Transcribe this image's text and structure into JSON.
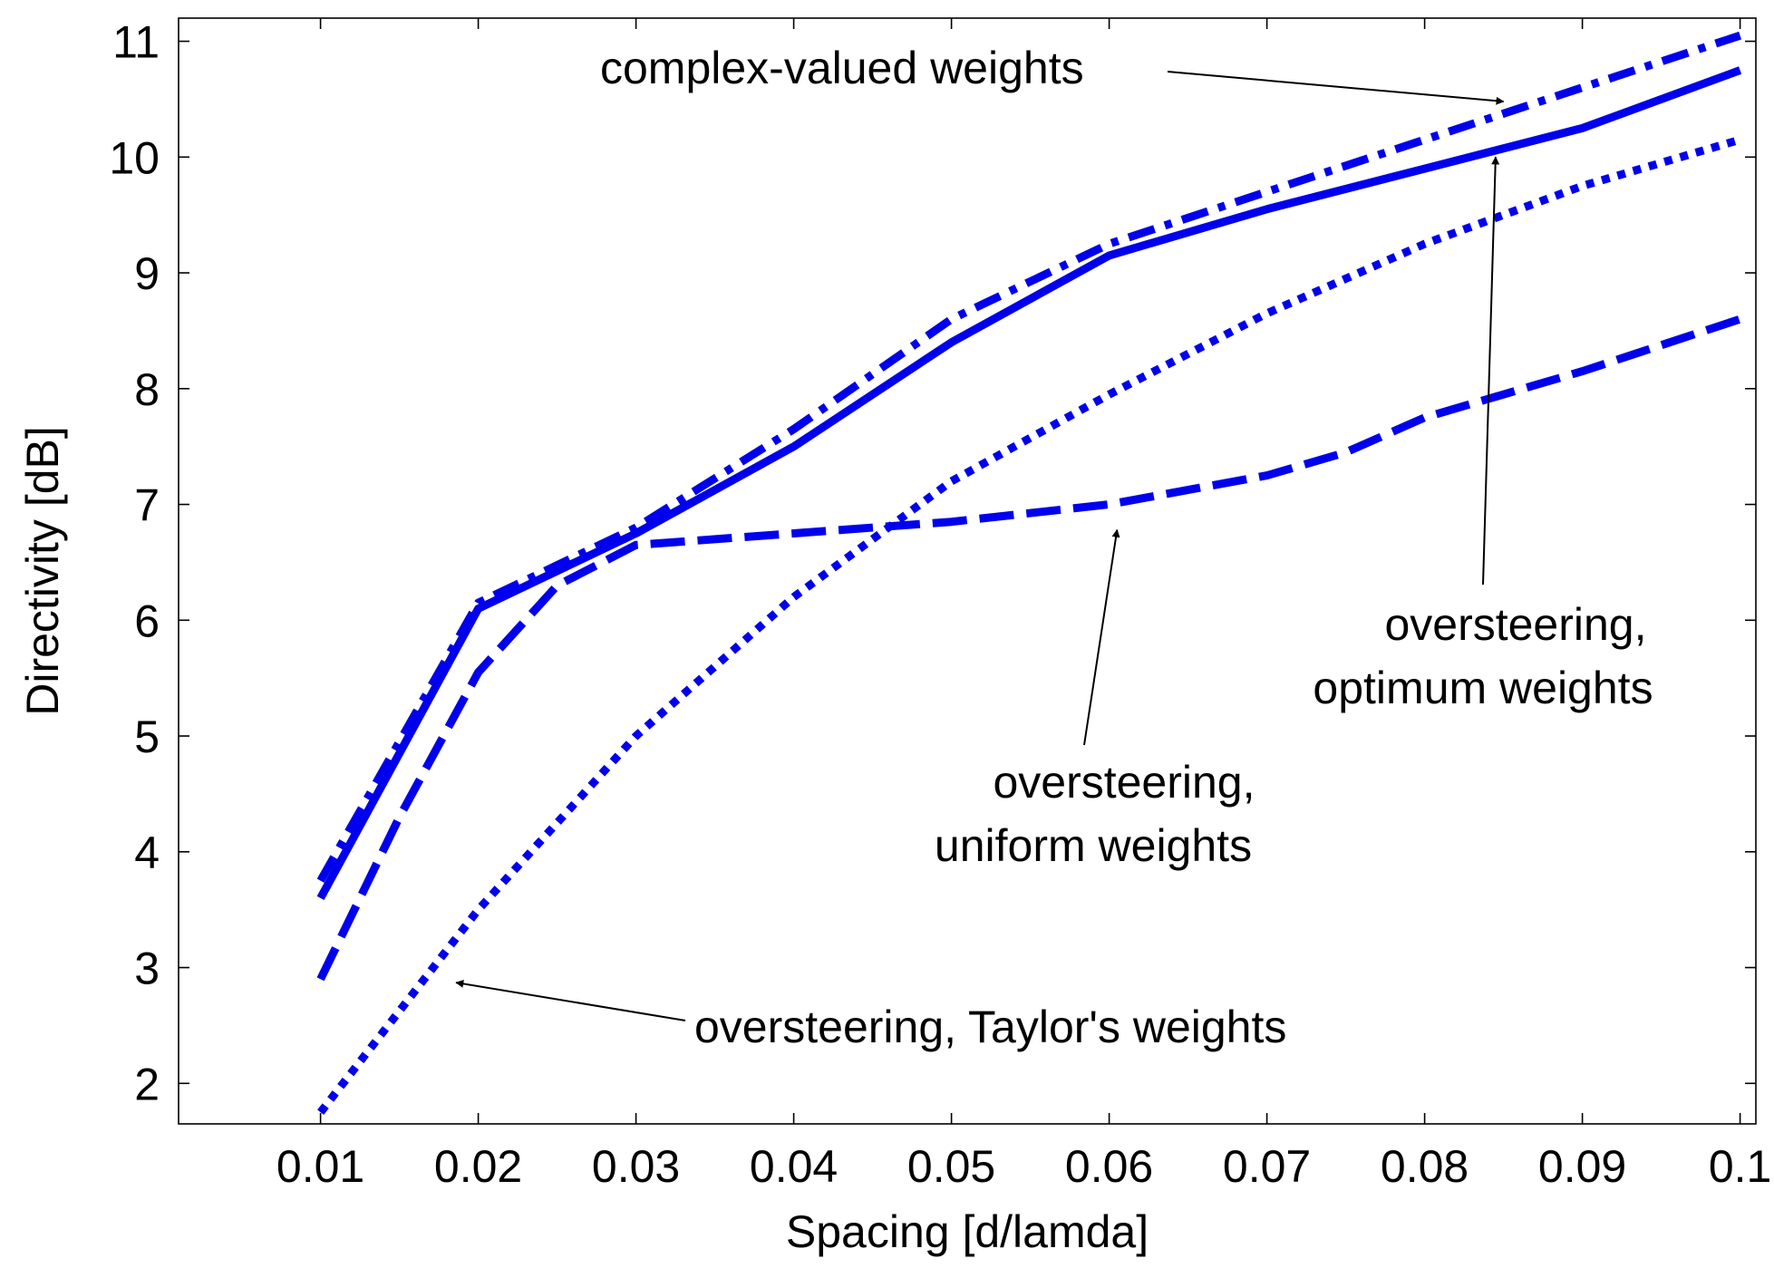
{
  "chart_data": {
    "type": "line",
    "title": "",
    "xlabel": "Spacing [d/lamda]",
    "ylabel": "Directivity [dB]",
    "xlim": [
      0.001,
      0.101
    ],
    "ylim": [
      1.65,
      11.2
    ],
    "grid": false,
    "line_color": "#0000ee",
    "x_ticks": [
      0.01,
      0.02,
      0.03,
      0.04,
      0.05,
      0.06,
      0.07,
      0.08,
      0.09,
      0.1
    ],
    "x_tick_labels": [
      "0.01",
      "0.02",
      "0.03",
      "0.04",
      "0.05",
      "0.06",
      "0.07",
      "0.08",
      "0.09",
      "0.1"
    ],
    "y_ticks": [
      2,
      3,
      4,
      5,
      6,
      7,
      8,
      9,
      10,
      11
    ],
    "y_tick_labels": [
      "2",
      "3",
      "4",
      "5",
      "6",
      "7",
      "8",
      "9",
      "10",
      "11"
    ],
    "series": [
      {
        "name": "complex-valued weights",
        "style": "dashdot",
        "x": [
          0.01,
          0.02,
          0.03,
          0.04,
          0.05,
          0.06,
          0.07,
          0.08,
          0.09,
          0.1
        ],
        "values": [
          3.75,
          6.15,
          6.8,
          7.65,
          8.6,
          9.25,
          9.7,
          10.15,
          10.6,
          11.05
        ]
      },
      {
        "name": "oversteering, optimum weights",
        "style": "solid",
        "x": [
          0.01,
          0.02,
          0.03,
          0.04,
          0.05,
          0.06,
          0.07,
          0.08,
          0.09,
          0.1
        ],
        "values": [
          3.6,
          6.1,
          6.75,
          7.5,
          8.4,
          9.15,
          9.55,
          9.9,
          10.25,
          10.75
        ]
      },
      {
        "name": "oversteering, uniform weights",
        "style": "dashed",
        "x": [
          0.01,
          0.015,
          0.02,
          0.025,
          0.03,
          0.04,
          0.05,
          0.06,
          0.07,
          0.075,
          0.08,
          0.09,
          0.1
        ],
        "values": [
          2.9,
          4.3,
          5.55,
          6.3,
          6.65,
          6.75,
          6.85,
          7.0,
          7.25,
          7.45,
          7.75,
          8.15,
          8.6
        ]
      },
      {
        "name": "oversteering, Taylor's weights",
        "style": "dotted",
        "x": [
          0.01,
          0.02,
          0.03,
          0.04,
          0.05,
          0.06,
          0.07,
          0.08,
          0.09,
          0.1
        ],
        "values": [
          1.75,
          3.5,
          5.0,
          6.2,
          7.2,
          7.95,
          8.65,
          9.25,
          9.75,
          10.15
        ]
      }
    ],
    "annotations": [
      {
        "text": "complex-valued weights",
        "series": 0,
        "arrow_to": [
          0.085,
          10.48
        ]
      },
      {
        "text": "oversteering,",
        "text2": "optimum weights",
        "series": 1,
        "arrow_to": [
          0.0845,
          10.0
        ]
      },
      {
        "text": "oversteering,",
        "text2": "uniform weights",
        "series": 2,
        "arrow_to": [
          0.0605,
          6.78
        ]
      },
      {
        "text": "oversteering, Taylor's weights",
        "series": 3,
        "arrow_to": [
          0.0186,
          2.87
        ]
      }
    ]
  }
}
